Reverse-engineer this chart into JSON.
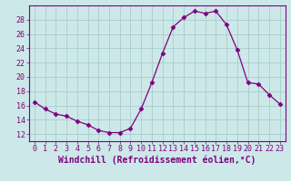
{
  "x": [
    0,
    1,
    2,
    3,
    4,
    5,
    6,
    7,
    8,
    9,
    10,
    11,
    12,
    13,
    14,
    15,
    16,
    17,
    18,
    19,
    20,
    21,
    22,
    23
  ],
  "y": [
    16.5,
    15.5,
    14.8,
    14.5,
    13.8,
    13.3,
    12.5,
    12.2,
    12.2,
    12.8,
    15.5,
    19.2,
    23.3,
    27.0,
    28.3,
    29.2,
    28.9,
    29.2,
    27.3,
    23.8,
    19.2,
    19.0,
    17.5,
    16.2
  ],
  "line_color": "#800080",
  "marker": "D",
  "marker_size": 2.5,
  "bg_color": "#cce8e8",
  "grid_color": "#aacccc",
  "xlabel": "Windchill (Refroidissement éolien,°C)",
  "ylim": [
    11,
    30
  ],
  "xlim": [
    -0.5,
    23.5
  ],
  "yticks": [
    12,
    14,
    16,
    18,
    20,
    22,
    24,
    26,
    28
  ],
  "xticks": [
    0,
    1,
    2,
    3,
    4,
    5,
    6,
    7,
    8,
    9,
    10,
    11,
    12,
    13,
    14,
    15,
    16,
    17,
    18,
    19,
    20,
    21,
    22,
    23
  ],
  "tick_fontsize": 6,
  "xlabel_fontsize": 7,
  "spine_color": "#800080"
}
